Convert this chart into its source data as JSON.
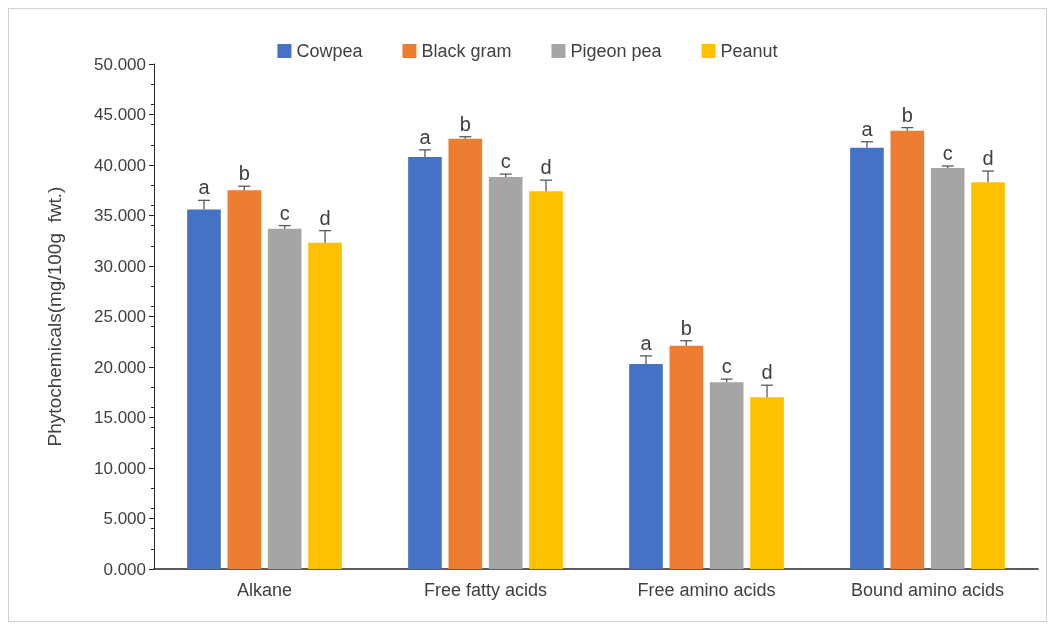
{
  "chart_data": {
    "type": "bar",
    "ylabel": "Phytochemicals(mg/100g  fwt.)",
    "categories": [
      "Alkane",
      "Free fatty acids",
      "Free amino acids",
      "Bound amino acids"
    ],
    "series": [
      {
        "name": "Cowpea",
        "color": "#4472c4",
        "values": [
          35.6,
          40.8,
          20.3,
          41.7
        ],
        "errors": [
          [
            35.6,
            36.5
          ],
          [
            40.8,
            41.5
          ],
          [
            20.3,
            21.1
          ],
          [
            41.7,
            42.3
          ]
        ],
        "value_labels": [
          "a",
          "a",
          "a",
          "a"
        ]
      },
      {
        "name": "Black gram",
        "color": "#ed7d31",
        "values": [
          37.5,
          42.6,
          22.1,
          43.4
        ],
        "errors": [
          [
            37.5,
            37.9
          ],
          [
            42.6,
            42.8
          ],
          [
            22.1,
            22.6
          ],
          [
            43.4,
            43.7
          ]
        ],
        "value_labels": [
          "b",
          "b",
          "b",
          "b"
        ]
      },
      {
        "name": "Pigeon pea",
        "color": "#a5a5a5",
        "values": [
          33.7,
          38.8,
          18.5,
          39.7
        ],
        "errors": [
          [
            33.7,
            34.0
          ],
          [
            38.8,
            39.1
          ],
          [
            18.5,
            18.8
          ],
          [
            39.7,
            39.9
          ]
        ],
        "value_labels": [
          "c",
          "c",
          "c",
          "c"
        ]
      },
      {
        "name": "Peanut",
        "color": "#ffc000",
        "values": [
          32.3,
          37.4,
          17.0,
          38.3
        ],
        "errors": [
          [
            32.3,
            33.5
          ],
          [
            37.4,
            38.5
          ],
          [
            17.0,
            18.2
          ],
          [
            38.3,
            39.4
          ]
        ],
        "value_labels": [
          "d",
          "d",
          "d",
          "d"
        ]
      }
    ],
    "ylim": [
      0,
      50
    ],
    "yticks": [
      {
        "value": 0,
        "label": "0.000"
      },
      {
        "value": 5,
        "label": "5.000"
      },
      {
        "value": 10,
        "label": "10.000"
      },
      {
        "value": 15,
        "label": "15.000"
      },
      {
        "value": 20,
        "label": "20.000"
      },
      {
        "value": 25,
        "label": "25.000"
      },
      {
        "value": 30,
        "label": "30.000"
      },
      {
        "value": 35,
        "label": "35.000"
      },
      {
        "value": 40,
        "label": "40.000"
      },
      {
        "value": 45,
        "label": "45.000"
      },
      {
        "value": 50,
        "label": "50.000"
      }
    ],
    "grid": false,
    "legend": "top"
  }
}
